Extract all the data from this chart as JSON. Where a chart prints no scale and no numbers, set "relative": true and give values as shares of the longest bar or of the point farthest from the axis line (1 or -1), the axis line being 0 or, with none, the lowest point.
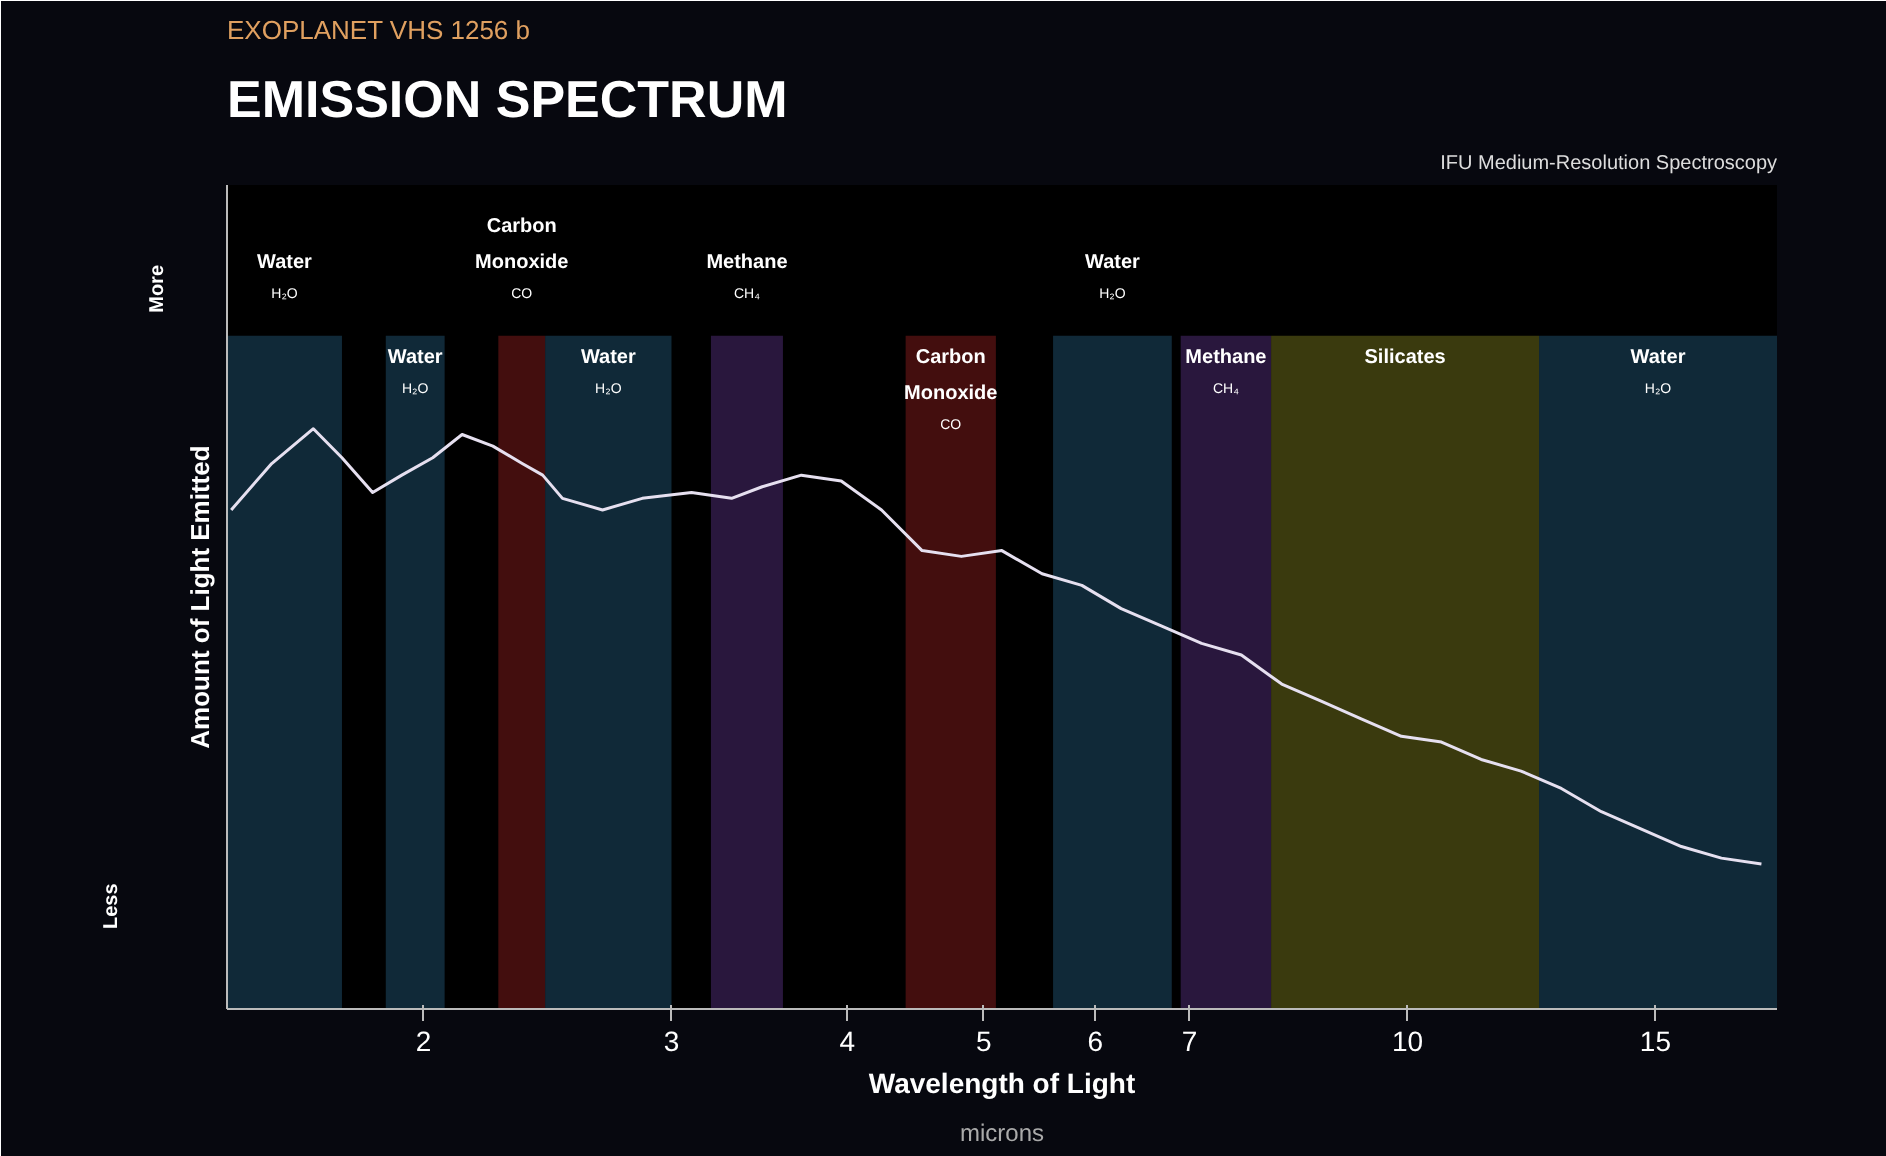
{
  "chart_data": {
    "type": "line",
    "title": "EMISSION SPECTRUM",
    "subtitle": "EXOPLANET VHS 1256 b",
    "xlabel": "Wavelength of Light",
    "ylabel": "Amount of Light Emitted",
    "annotations": [
      "IFU Medium-Resolution Spectroscopy",
      "More",
      "Less",
      "microns"
    ],
    "relative": true,
    "log": "x",
    "grid": false,
    "xlim": [
      1.45,
      18.3
    ],
    "xticks": [
      2,
      3,
      4,
      5,
      6,
      7,
      10,
      15
    ],
    "series": [
      {
        "color": "#e6e0f0",
        "x": [
          1.46,
          1.56,
          1.67,
          1.75,
          1.84,
          1.93,
          2.03,
          2.13,
          2.24,
          2.35,
          2.43,
          2.51,
          2.68,
          2.86,
          3.1,
          3.31,
          3.48,
          3.71,
          3.96,
          4.23,
          4.52,
          4.82,
          5.15,
          5.5,
          5.87,
          6.26,
          6.69,
          7.14,
          7.62,
          8.14,
          8.69,
          9.27,
          9.9,
          10.57,
          11.28,
          12.04,
          12.86,
          13.73,
          14.66,
          15.65,
          16.71,
          17.84
        ],
        "values": [
          0.86,
          0.94,
          1.0,
          0.95,
          0.89,
          0.92,
          0.95,
          0.99,
          0.97,
          0.94,
          0.92,
          0.88,
          0.86,
          0.88,
          0.89,
          0.88,
          0.9,
          0.92,
          0.91,
          0.86,
          0.79,
          0.78,
          0.79,
          0.75,
          0.73,
          0.69,
          0.66,
          0.63,
          0.61,
          0.56,
          0.53,
          0.5,
          0.47,
          0.46,
          0.43,
          0.41,
          0.38,
          0.34,
          0.31,
          0.28,
          0.26,
          0.25
        ]
      }
    ],
    "bands": [
      {
        "axis": "x",
        "from": 1.45,
        "to": 1.75,
        "label": "Water\nH₂O",
        "color": "#1d4a66"
      },
      {
        "axis": "x",
        "from": 1.88,
        "to": 2.07,
        "label": "Water\nH₂O",
        "color": "#1d4a66"
      },
      {
        "axis": "x",
        "from": 2.26,
        "to": 2.44,
        "label": "Carbon\nMonoxide\nCO",
        "color": "#7a1a1a"
      },
      {
        "axis": "x",
        "from": 2.44,
        "to": 3.0,
        "label": "Water\nH₂O",
        "color": "#1d4a66"
      },
      {
        "axis": "x",
        "from": 3.2,
        "to": 3.6,
        "label": "Methane\nCH₄",
        "color": "#4a2a70"
      },
      {
        "axis": "x",
        "from": 4.4,
        "to": 5.1,
        "label": "Carbon\nMonoxide\nCO",
        "color": "#7a1a1a"
      },
      {
        "axis": "x",
        "from": 5.6,
        "to": 6.8,
        "label": "Water\nH₂O",
        "color": "#1d4a66"
      },
      {
        "axis": "x",
        "from": 6.9,
        "to": 8.0,
        "label": "Methane\nCH₄",
        "color": "#4a2a70"
      },
      {
        "axis": "x",
        "from": 8.0,
        "to": 12.4,
        "label": "Silicates",
        "color": "#6a6a1a"
      },
      {
        "axis": "x",
        "from": 12.4,
        "to": 18.3,
        "label": "Water\nH₂O",
        "color": "#1d4a66"
      }
    ]
  }
}
